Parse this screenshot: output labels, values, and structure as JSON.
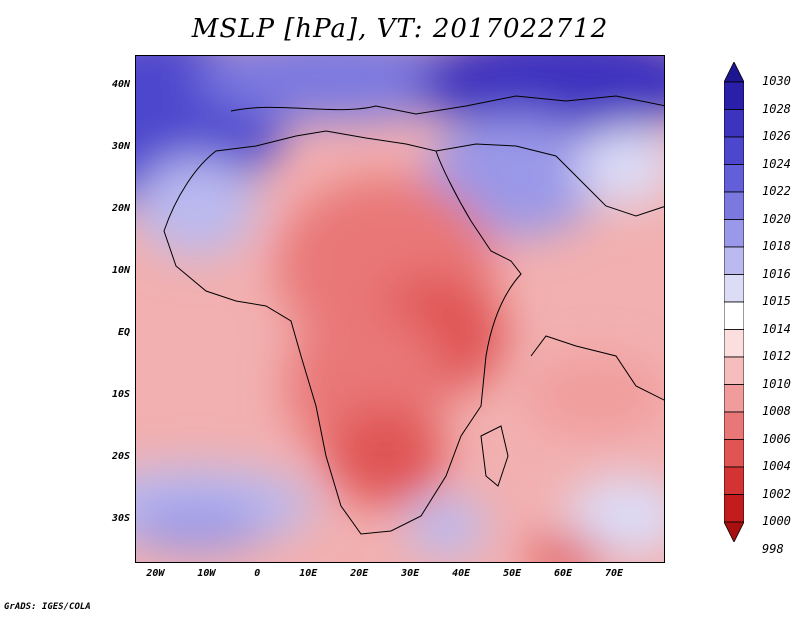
{
  "title": "MSLP [hPa], VT: 2017022712",
  "footer": "GrADS: IGES/COLA",
  "map": {
    "variable": "Mean sea level pressure",
    "units": "hPa",
    "valid_time": "2017022712",
    "lon_range": [
      -24,
      80
    ],
    "lat_range": [
      -37,
      45
    ]
  },
  "x_ticks": [
    "20W",
    "10W",
    "0",
    "10E",
    "20E",
    "30E",
    "40E",
    "50E",
    "60E",
    "70E"
  ],
  "y_ticks": [
    "40N",
    "30N",
    "20N",
    "10N",
    "EQ",
    "10S",
    "20S",
    "30S"
  ],
  "colorbar": {
    "levels": [
      "1030",
      "1028",
      "1026",
      "1024",
      "1022",
      "1020",
      "1018",
      "1016",
      "1015",
      "1014",
      "1012",
      "1010",
      "1008",
      "1006",
      "1004",
      "1002",
      "1000",
      "998"
    ],
    "colors": [
      "#1e1591",
      "#2a1fa8",
      "#3c33bf",
      "#4d47cd",
      "#625fd8",
      "#7b79e0",
      "#9a98e8",
      "#babaf0",
      "#dcdcf7",
      "#ffffff",
      "#fbdede",
      "#f6bdbd",
      "#f19c9c",
      "#e97777",
      "#e05454",
      "#d43333",
      "#c31c1c",
      "#a81010"
    ]
  }
}
